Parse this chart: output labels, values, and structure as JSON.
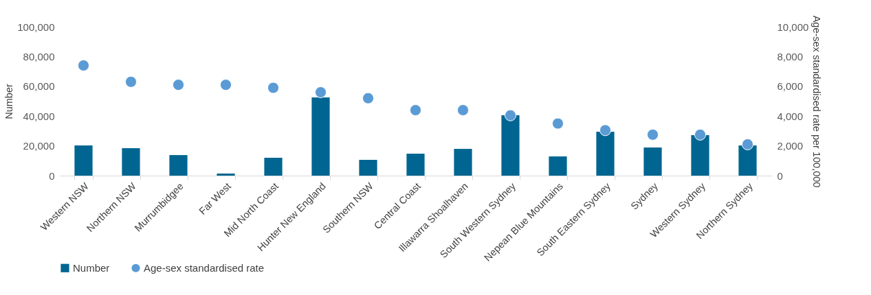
{
  "chart_data": {
    "type": "bar",
    "categories": [
      "Western NSW",
      "Northern NSW",
      "Murrumbidgee",
      "Far West",
      "Mid North Coast",
      "Hunter New England",
      "Southern NSW",
      "Central Coast",
      "Illawarra Shoalhaven",
      "South Western Sydney",
      "Nepean Blue Mountains",
      "South Eastern Sydney",
      "Sydney",
      "Western Sydney",
      "Northern Sydney"
    ],
    "series": [
      {
        "name": "Number",
        "color": "#006691",
        "values": [
          20300,
          18400,
          13800,
          1400,
          12000,
          52500,
          10600,
          14700,
          18000,
          40600,
          12900,
          29500,
          18900,
          27200,
          20300
        ]
      },
      {
        "name": "Age-sex standardised rate",
        "type": "scatter",
        "axis": "y2",
        "color": "#5b9bd5",
        "values": [
          7400,
          6300,
          6100,
          6100,
          5900,
          5600,
          5200,
          4400,
          4400,
          4050,
          3500,
          3050,
          2750,
          2750,
          2100
        ]
      }
    ],
    "ylabel": "Number",
    "y2label": "Age-sex standardised rate per 100,000",
    "ylim": [
      0,
      100000
    ],
    "yticks": [
      0,
      {
        "value": 20000,
        "label": "20,000"
      },
      {
        "value": 40000,
        "label": "40,000"
      },
      {
        "value": 60000,
        "label": "60,000"
      },
      {
        "value": 80000,
        "label": "80,000"
      },
      {
        "value": 100000,
        "label": "100,000"
      }
    ],
    "y2lim": [
      0,
      10000
    ],
    "y2ticks": [
      0,
      {
        "value": 2000,
        "label": "2,000"
      },
      {
        "value": 4000,
        "label": "4,000"
      },
      {
        "value": 6000,
        "label": "6,000"
      },
      {
        "value": 8000,
        "label": "8,000"
      },
      {
        "value": 10000,
        "label": "10,000"
      }
    ],
    "grid": false,
    "legend": "bottom",
    "marker": "circle"
  }
}
